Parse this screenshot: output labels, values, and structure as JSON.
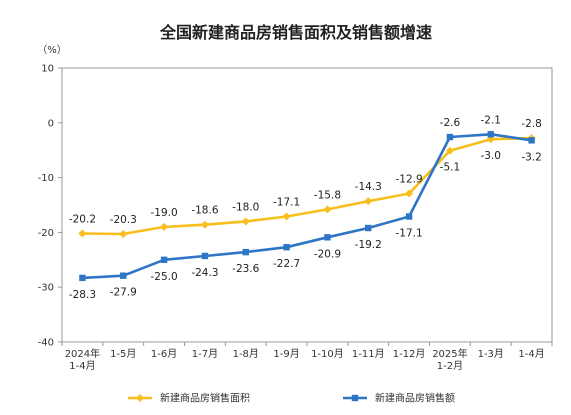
{
  "chart_data": {
    "type": "line",
    "title": "全国新建商品房销售面积及销售额增速",
    "ylabel": "（%）",
    "xlabel": "",
    "ylim": [
      -40,
      10
    ],
    "yticks": [
      10,
      0,
      -10,
      -20,
      -30,
      -40
    ],
    "grid": false,
    "legend": "bottom",
    "categories": [
      [
        "2024年",
        "1-4月"
      ],
      [
        "1-5月"
      ],
      [
        "1-6月"
      ],
      [
        "1-7月"
      ],
      [
        "1-8月"
      ],
      [
        "1-9月"
      ],
      [
        "1-10月"
      ],
      [
        "1-11月"
      ],
      [
        "1-12月"
      ],
      [
        "2025年",
        "1-2月"
      ],
      [
        "1-3月"
      ],
      [
        "1-4月"
      ]
    ],
    "series": [
      {
        "name": "新建商品房销售面积",
        "color": "#F7BE1E",
        "values": [
          -20.2,
          -20.3,
          -19.0,
          -18.6,
          -18.0,
          -17.1,
          -15.8,
          -14.3,
          -12.9,
          -5.1,
          -3.0,
          -2.8
        ],
        "labels": [
          "-20.2",
          "-20.3",
          "-19.0",
          "-18.6",
          "-18.0",
          "-17.1",
          "-15.8",
          "-14.3",
          "-12.9",
          "-5.1",
          "-3.0",
          "-2.8"
        ]
      },
      {
        "name": "新建商品房销售额",
        "color": "#2E75C6",
        "values": [
          -28.3,
          -27.9,
          -25.0,
          -24.3,
          -23.6,
          -22.7,
          -20.9,
          -19.2,
          -17.1,
          -2.6,
          -2.1,
          -3.2
        ],
        "labels": [
          "-28.3",
          "-27.9",
          "-25.0",
          "-24.3",
          "-23.6",
          "-22.7",
          "-20.9",
          "-19.2",
          "-17.1",
          "-2.6",
          "-2.1",
          "-3.2"
        ]
      }
    ]
  }
}
